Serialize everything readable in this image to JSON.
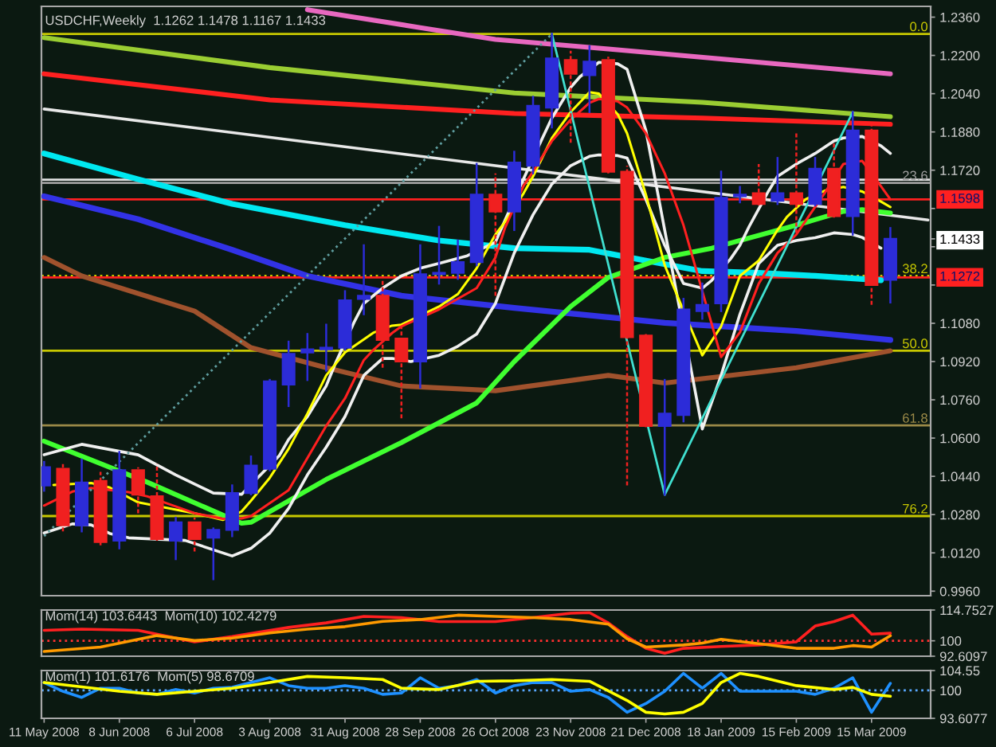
{
  "chart_data": [
    {
      "type": "candlestick",
      "title": "USDCHF,Weekly  1.1262 1.1478 1.1167 1.1433",
      "x": [
        "2008-05-11",
        "2008-05-18",
        "2008-05-25",
        "2008-06-01",
        "2008-06-08",
        "2008-06-15",
        "2008-06-22",
        "2008-06-29",
        "2008-07-06",
        "2008-07-13",
        "2008-07-20",
        "2008-07-27",
        "2008-08-03",
        "2008-08-10",
        "2008-08-17",
        "2008-08-24",
        "2008-08-31",
        "2008-09-07",
        "2008-09-14",
        "2008-09-21",
        "2008-09-28",
        "2008-10-05",
        "2008-10-12",
        "2008-10-19",
        "2008-10-26",
        "2008-11-02",
        "2008-11-09",
        "2008-11-16",
        "2008-11-23",
        "2008-11-30",
        "2008-12-07",
        "2008-12-14",
        "2008-12-21",
        "2008-12-28",
        "2009-01-04",
        "2009-01-11",
        "2009-01-18",
        "2009-01-25",
        "2009-02-01",
        "2009-02-08",
        "2009-02-15",
        "2009-02-22",
        "2009-03-01",
        "2009-03-08",
        "2009-03-15",
        "2009-03-22"
      ],
      "ohlc": [
        [
          1.0402,
          1.05,
          1.038,
          1.0478
        ],
        [
          1.0472,
          1.0491,
          1.021,
          1.0235
        ],
        [
          1.0235,
          1.051,
          1.021,
          1.0414
        ],
        [
          1.0421,
          1.0459,
          1.0152,
          1.0165
        ],
        [
          1.0171,
          1.0542,
          1.0139,
          1.0466
        ],
        [
          1.0466,
          1.0478,
          1.0286,
          1.0363
        ],
        [
          1.0357,
          1.0491,
          1.0171,
          1.0178
        ],
        [
          1.0171,
          1.0267,
          1.0094,
          1.0248
        ],
        [
          1.0248,
          1.0267,
          1.0126,
          1.0178
        ],
        [
          1.0184,
          1.0222,
          1.001,
          1.0216
        ],
        [
          1.0216,
          1.0402,
          1.019,
          1.037
        ],
        [
          1.037,
          1.0523,
          1.0365,
          1.0485
        ],
        [
          1.0472,
          1.0843,
          1.0465,
          1.0837
        ],
        [
          1.0824,
          1.1003,
          1.0734,
          1.0952
        ],
        [
          1.0958,
          1.1035,
          1.0843,
          1.0971
        ],
        [
          1.0971,
          1.1074,
          1.0882,
          1.0978
        ],
        [
          1.0978,
          1.1214,
          1.097,
          1.1176
        ],
        [
          1.1182,
          1.1406,
          1.1118,
          1.1195
        ],
        [
          1.1195,
          1.1266,
          1.0894,
          1.101
        ],
        [
          1.1016,
          1.1067,
          1.0683,
          1.092
        ],
        [
          1.092,
          1.1406,
          1.0811,
          1.1285
        ],
        [
          1.1285,
          1.1483,
          1.1246,
          1.1291
        ],
        [
          1.1291,
          1.1426,
          1.1266,
          1.1336
        ],
        [
          1.1336,
          1.1746,
          1.1323,
          1.1618
        ],
        [
          1.1618,
          1.1707,
          1.1195,
          1.1547
        ],
        [
          1.1547,
          1.1797,
          1.147,
          1.1752
        ],
        [
          1.1739,
          1.2027,
          1.1707,
          1.1989
        ],
        [
          1.1982,
          1.229,
          1.1899,
          1.2187
        ],
        [
          1.2181,
          1.2219,
          1.1835,
          1.2123
        ],
        [
          1.2117,
          1.2238,
          1.1963,
          1.2174
        ],
        [
          1.2181,
          1.2194,
          1.1707,
          1.1714
        ],
        [
          1.1714,
          1.1739,
          1.0402,
          1.1022
        ],
        [
          1.1029,
          1.104,
          1.0645,
          1.0651
        ],
        [
          1.0651,
          1.0843,
          1.0363,
          1.0702
        ],
        [
          1.0696,
          1.1182,
          1.067,
          1.1138
        ],
        [
          1.1131,
          1.1246,
          1.1099,
          1.1157
        ],
        [
          1.1163,
          1.1714,
          1.1131,
          1.1605
        ],
        [
          1.1611,
          1.165,
          1.1586,
          1.1618
        ],
        [
          1.1624,
          1.1746,
          1.1573,
          1.1579
        ],
        [
          1.1592,
          1.1771,
          1.1579,
          1.1624
        ],
        [
          1.1624,
          1.1874,
          1.1458,
          1.1579
        ],
        [
          1.1579,
          1.1771,
          1.1573,
          1.1726
        ],
        [
          1.1726,
          1.1835,
          1.1522,
          1.1528
        ],
        [
          1.1528,
          1.1963,
          1.1451,
          1.1886
        ],
        [
          1.1886,
          1.1906,
          1.1157,
          1.124
        ],
        [
          1.1262,
          1.1478,
          1.1167,
          1.1433
        ]
      ],
      "colors": [
        "#2c2cd8",
        "#f02020",
        "#2c2cd8",
        "#f02020",
        "#2c2cd8",
        "#f02020",
        "#f02020",
        "#2c2cd8",
        "#f02020",
        "#2c2cd8",
        "#2c2cd8",
        "#2c2cd8",
        "#2c2cd8",
        "#2c2cd8",
        "#2c2cd8",
        "#2c2cd8",
        "#2c2cd8",
        "#2c2cd8",
        "#f02020",
        "#f02020",
        "#2c2cd8",
        "#2c2cd8",
        "#2c2cd8",
        "#2c2cd8",
        "#f02020",
        "#2c2cd8",
        "#2c2cd8",
        "#2c2cd8",
        "#f02020",
        "#2c2cd8",
        "#f02020",
        "#f02020",
        "#f02020",
        "#2c2cd8",
        "#2c2cd8",
        "#2c2cd8",
        "#2c2cd8",
        "#2c2cd8",
        "#f02020",
        "#2c2cd8",
        "#f02020",
        "#2c2cd8",
        "#f02020",
        "#2c2cd8",
        "#f02020",
        "#2c2cd8"
      ],
      "series": [
        {
          "type": "line",
          "color": "#e868c0",
          "x": [
            "2008-08-17",
            "2008-09-28",
            "2008-10-26",
            "2008-12-07",
            "2009-01-18",
            "2009-03-22"
          ],
          "values": [
            1.2391,
            1.2316,
            1.2267,
            1.2227,
            1.2185,
            1.2123
          ]
        },
        {
          "type": "line",
          "color": "#9acd32",
          "x": [
            "2008-05-11",
            "2008-08-03",
            "2008-11-02",
            "2009-01-11",
            "2009-03-22"
          ],
          "values": [
            1.2274,
            1.2149,
            1.2043,
            1.2004,
            1.1944
          ]
        },
        {
          "type": "line",
          "color": "#ff2020",
          "x": [
            "2008-05-11",
            "2008-08-03",
            "2008-11-02",
            "2009-01-11",
            "2009-03-22"
          ],
          "values": [
            1.2123,
            1.2014,
            1.1957,
            1.1938,
            1.1912
          ]
        },
        {
          "type": "line",
          "color": "#e8e8e8",
          "x": [
            "2008-05-11",
            "2009-04-05"
          ],
          "values": [
            1.1976,
            1.1512
          ]
        },
        {
          "type": "line",
          "color": "#00e8f0",
          "x": [
            "2008-05-11",
            "2008-06-15",
            "2008-07-20",
            "2008-08-31",
            "2008-10-05",
            "2008-11-02",
            "2008-11-30",
            "2008-12-21",
            "2009-01-11",
            "2009-02-01",
            "2009-02-22",
            "2009-03-18T12:00"
          ],
          "values": [
            1.179,
            1.1682,
            1.1579,
            1.149,
            1.1426,
            1.1394,
            1.1387,
            1.1342,
            1.1298,
            1.1291,
            1.1278,
            1.126
          ]
        },
        {
          "type": "line",
          "color": "#3232e6",
          "x": [
            "2008-05-11",
            "2008-06-15",
            "2008-07-20",
            "2008-08-17",
            "2008-09-21",
            "2008-11-02",
            "2008-12-28",
            "2009-02-15",
            "2009-03-22"
          ],
          "values": [
            1.1611,
            1.1515,
            1.1387,
            1.1278,
            1.1195,
            1.1144,
            1.1082,
            1.1048,
            1.101
          ]
        },
        {
          "type": "line",
          "color": "#a0522d",
          "x": [
            "2008-05-11",
            "2008-05-25",
            "2008-07-06",
            "2008-07-27",
            "2008-08-24",
            "2008-09-21",
            "2008-10-26",
            "2008-12-07",
            "2008-12-28",
            "2009-02-15",
            "2009-03-22"
          ],
          "values": [
            1.1355,
            1.1278,
            1.1131,
            1.0978,
            1.0894,
            1.0818,
            1.0798,
            1.0862,
            1.083,
            1.0894,
            1.0965
          ]
        },
        {
          "type": "line",
          "color": "#40ff30",
          "x": [
            "2008-05-11",
            "2008-06-18T12:00",
            "2008-07-23T12:00",
            "2008-07-27",
            "2008-08-24",
            "2008-09-21",
            "2008-10-19",
            "2008-11-02",
            "2008-11-23",
            "2008-12-07",
            "2008-12-28",
            "2009-01-14T12:00",
            "2009-02-15",
            "2009-03-04T12:00",
            "2009-03-11T12:00",
            "2009-03-22"
          ],
          "values": [
            1.0587,
            1.0415,
            1.0244,
            1.0248,
            1.0427,
            1.0581,
            1.0747,
            1.092,
            1.115,
            1.1272,
            1.1355,
            1.1394,
            1.149,
            1.1548,
            1.1555,
            1.1541
          ]
        },
        {
          "type": "line",
          "color": "#f0f0f0",
          "x": [
            "2008-05-11",
            "2008-05-25",
            "2008-06-15",
            "2008-06-29",
            "2008-07-13",
            "2008-07-23T12:00",
            "2008-08-06T12:00",
            "2008-08-10",
            "2008-08-17",
            "2008-08-24",
            "2008-08-27T12:00",
            "2008-09-03T12:00",
            "2008-09-07",
            "2008-09-14",
            "2008-09-21",
            "2008-09-28",
            "2008-10-05",
            "2008-10-15T12:00",
            "2008-10-26",
            "2008-10-29T12:00",
            "2008-11-05T12:00",
            "2008-11-12T12:00",
            "2008-11-16",
            "2008-11-23",
            "2008-11-26T12:00",
            "2008-12-03T12:00",
            "2008-12-10T12:00",
            "2008-12-14",
            "2008-12-21",
            "2008-12-28",
            "2008-12-31T12:00",
            "2009-01-07T12:00",
            "2009-01-11",
            "2009-01-18",
            "2009-01-25",
            "2009-02-01",
            "2009-02-08",
            "2009-02-15",
            "2009-02-22",
            "2009-03-01",
            "2009-03-08",
            "2009-03-11T12:00",
            "2009-03-18T12:00"
          ],
          "values": [
            1.053,
            1.0574,
            1.053,
            1.0446,
            1.037,
            1.0365,
            1.0526,
            1.0594,
            1.069,
            1.0818,
            1.0914,
            1.1087,
            1.1163,
            1.1227,
            1.1278,
            1.131,
            1.133,
            1.1362,
            1.1419,
            1.1509,
            1.1685,
            1.1855,
            1.1938,
            1.2066,
            1.2111,
            1.2171,
            1.2165,
            1.2142,
            1.1886,
            1.147,
            1.1262,
            1.0846,
            1.0638,
            1.0862,
            1.1118,
            1.133,
            1.1406,
            1.1426,
            1.1438,
            1.1458,
            1.1451,
            1.1439,
            1.1394
          ]
        },
        {
          "type": "line",
          "color": "#f0f0f0",
          "x": [
            "2008-05-11",
            "2008-05-21T12:00",
            "2008-05-28T12:00",
            "2008-06-04T12:00",
            "2008-06-11T12:00",
            "2008-07-02T12:00",
            "2008-07-20",
            "2008-07-27",
            "2008-08-03",
            "2008-08-10",
            "2008-08-17",
            "2008-08-24",
            "2008-08-31",
            "2008-09-07",
            "2008-09-14",
            "2008-09-17T12:00",
            "2008-09-24T12:00",
            "2008-10-05",
            "2008-10-12",
            "2008-10-19",
            "2008-10-26",
            "2008-11-02",
            "2008-11-09",
            "2008-11-16",
            "2008-11-23",
            "2008-11-30",
            "2008-12-03T12:00",
            "2008-12-10T12:00",
            "2008-12-14",
            "2008-12-21",
            "2008-12-28",
            "2009-01-04",
            "2009-01-11",
            "2009-01-14T12:00",
            "2009-01-21T12:00",
            "2009-01-25",
            "2009-01-28T12:00",
            "2009-02-04T12:00",
            "2009-02-08",
            "2009-02-15",
            "2009-02-22",
            "2009-03-01",
            "2009-03-04T12:00",
            "2009-03-11T12:00",
            "2009-03-18T12:00",
            "2009-03-22"
          ],
          "values": [
            1.0203,
            1.0241,
            1.0237,
            1.0201,
            1.0183,
            1.0172,
            1.0107,
            1.0139,
            1.0203,
            1.0306,
            1.0446,
            1.0562,
            1.069,
            1.0862,
            1.0933,
            1.0933,
            1.092,
            1.0946,
            1.0984,
            1.1035,
            1.1163,
            1.1374,
            1.1534,
            1.1662,
            1.1739,
            1.1778,
            1.1784,
            1.1781,
            1.1771,
            1.1598,
            1.1406,
            1.1246,
            1.1227,
            1.1259,
            1.1349,
            1.1406,
            1.1486,
            1.163,
            1.1694,
            1.1746,
            1.179,
            1.1842,
            1.1855,
            1.1861,
            1.1822,
            1.179
          ]
        },
        {
          "type": "line",
          "color": "#ffff00",
          "x": [
            "2008-05-14T12:00",
            "2008-05-28T12:00",
            "2008-06-04T12:00",
            "2008-06-15",
            "2008-07-06",
            "2008-07-16T12:00",
            "2008-07-23T12:00",
            "2008-07-27",
            "2008-08-03",
            "2008-08-10",
            "2008-08-17",
            "2008-08-24",
            "2008-08-31",
            "2008-09-10T12:00",
            "2008-09-17T12:00",
            "2008-09-21",
            "2008-10-05",
            "2008-10-12",
            "2008-10-19",
            "2008-10-26",
            "2008-10-29T12:00",
            "2008-11-05T12:00",
            "2008-11-09",
            "2008-11-16",
            "2008-11-23",
            "2008-11-30",
            "2008-12-03T12:00",
            "2008-12-10T12:00",
            "2008-12-14",
            "2008-12-21",
            "2008-12-28",
            "2008-12-31T12:00",
            "2009-01-07T12:00",
            "2009-01-11",
            "2009-01-18",
            "2009-01-25",
            "2009-02-01",
            "2009-02-08",
            "2009-02-11T12:00",
            "2009-02-18T12:00",
            "2009-02-25T12:00",
            "2009-03-04T12:00",
            "2009-03-11T12:00",
            "2009-03-18T12:00",
            "2009-03-22"
          ],
          "values": [
            1.0404,
            1.0412,
            1.0393,
            1.0331,
            1.0286,
            1.0258,
            1.0293,
            1.0338,
            1.0434,
            1.0555,
            1.0702,
            1.0862,
            1.0958,
            1.104,
            1.107,
            1.1074,
            1.115,
            1.1202,
            1.131,
            1.1451,
            1.1503,
            1.1624,
            1.1694,
            1.1854,
            1.1963,
            1.2046,
            1.204,
            1.1954,
            1.1874,
            1.1618,
            1.1323,
            1.1227,
            1.1039,
            1.0946,
            1.1067,
            1.1278,
            1.1342,
            1.147,
            1.1525,
            1.1599,
            1.1634,
            1.165,
            1.1631,
            1.1589,
            1.1566
          ]
        },
        {
          "type": "line",
          "color": "#ff2020",
          "x": [
            "2008-05-11",
            "2008-05-21T12:00",
            "2008-05-28T12:00",
            "2008-06-11T12:00",
            "2008-06-18T12:00",
            "2008-07-06",
            "2008-07-16T12:00",
            "2008-07-23T12:00",
            "2008-07-27",
            "2008-08-10",
            "2008-08-24",
            "2008-08-31",
            "2008-09-07",
            "2008-09-10T12:00",
            "2008-09-17T12:00",
            "2008-09-21",
            "2008-10-05",
            "2008-10-19",
            "2008-10-26",
            "2008-10-29T12:00",
            "2008-11-05T12:00",
            "2008-11-09",
            "2008-11-16",
            "2008-11-23",
            "2008-11-30",
            "2008-12-03T12:00",
            "2008-12-10T12:00",
            "2008-12-14",
            "2008-12-21",
            "2008-12-28",
            "2009-01-04",
            "2009-01-11",
            "2009-01-18",
            "2009-01-25",
            "2009-02-01",
            "2009-02-08",
            "2009-02-15",
            "2009-02-18T12:00",
            "2009-02-25T12:00",
            "2009-03-04T12:00",
            "2009-03-11T12:00",
            "2009-03-18T12:00",
            "2009-03-22"
          ],
          "values": [
            1.0318,
            1.0376,
            1.0391,
            1.0374,
            1.0356,
            1.0286,
            1.0262,
            1.0264,
            1.0274,
            1.0382,
            1.0651,
            1.0766,
            1.0926,
            1.0968,
            1.1039,
            1.1067,
            1.1138,
            1.1227,
            1.1355,
            1.1477,
            1.1656,
            1.1714,
            1.1842,
            1.1931,
            1.2002,
            1.2018,
            1.2008,
            1.1982,
            1.1874,
            1.1707,
            1.149,
            1.1214,
            1.0939,
            1.1042,
            1.1246,
            1.1374,
            1.1451,
            1.1509,
            1.1624,
            1.1746,
            1.1759,
            1.1653,
            1.1598
          ]
        },
        {
          "type": "line",
          "color": "#40e0d0",
          "x": [
            "2008-11-16",
            "2008-12-28",
            "2009-03-08"
          ],
          "values": [
            1.229,
            1.0363,
            1.1963
          ]
        },
        {
          "type": "line",
          "color": "#5f9ea0",
          "line_style": "dotted",
          "x": [
            "2008-05-11",
            "2008-11-16"
          ],
          "values": [
            1.019,
            1.229
          ]
        }
      ],
      "xlim": [
        "2008-05-10",
        "2009-04-06"
      ],
      "ylim": [
        0.9941,
        1.2405
      ],
      "yticks": [
        {
          "value": 1.236,
          "label": "1.2360"
        },
        {
          "value": 1.22,
          "label": "1.2200"
        },
        {
          "value": 1.204,
          "label": "1.2040"
        },
        {
          "value": 1.188,
          "label": "1.1880"
        },
        {
          "value": 1.172,
          "label": "1.1720"
        },
        {
          "value": 1.156,
          "label": null
        },
        {
          "value": 1.1433,
          "label": "1.1433"
        },
        {
          "value": 1.14,
          "label": null
        },
        {
          "value": 1.124,
          "label": null
        },
        {
          "value": 1.108,
          "label": "1.1080"
        },
        {
          "value": 1.092,
          "label": "1.0920"
        },
        {
          "value": 1.076,
          "label": "1.0760"
        },
        {
          "value": 1.06,
          "label": "1.0600"
        },
        {
          "value": 1.044,
          "label": "1.0440"
        },
        {
          "value": 1.028,
          "label": "1.0280"
        },
        {
          "value": 1.012,
          "label": "1.0120"
        },
        {
          "value": 0.996,
          "label": "0.9960"
        }
      ],
      "ref_lines": [
        {
          "axis": "y",
          "value": 1.229,
          "color": "#c8c800"
        },
        {
          "axis": "y",
          "value": 1.168,
          "color": "#e0e0e0"
        },
        {
          "axis": "y",
          "value": 1.1667,
          "color": "#a0a0a0"
        },
        {
          "axis": "y",
          "value": 1.1598,
          "label": "1.1598",
          "color": "#ff2020"
        },
        {
          "axis": "y",
          "value": 1.1278,
          "color": "#c8c800",
          "line_style": "dotted"
        },
        {
          "axis": "y",
          "value": 1.1272,
          "label": "1.1272",
          "color": "#ff2020"
        },
        {
          "axis": "y",
          "value": 1.0965,
          "color": "#c8c800"
        },
        {
          "axis": "y",
          "value": 1.0653,
          "color": "#9c8a48"
        },
        {
          "axis": "y",
          "value": 1.0274,
          "color": "#c8c800"
        }
      ],
      "annotations": [
        {
          "text": "0.0",
          "y": 1.229
        },
        {
          "text": "23.6",
          "y": 1.1667
        },
        {
          "text": "38.2",
          "y": 1.1278
        },
        {
          "text": "50.0",
          "y": 1.0965
        },
        {
          "text": "61.8",
          "y": 1.0653
        },
        {
          "text": "76.2",
          "y": 1.0274
        }
      ],
      "tick_labels": "y"
    },
    {
      "type": "line",
      "title": "Mom(14) 103.6443  Mom(10) 102.4279",
      "series": [
        {
          "color": "#ff2020",
          "x": [
            "2008-05-11",
            "2008-05-25",
            "2008-06-15",
            "2008-07-06",
            "2008-07-20",
            "2008-08-10",
            "2008-08-24",
            "2008-09-07",
            "2008-09-21",
            "2008-10-05",
            "2008-10-26",
            "2008-11-09",
            "2008-11-23",
            "2008-11-30",
            "2008-12-07",
            "2008-12-14",
            "2008-12-21",
            "2008-12-28",
            "2009-01-04",
            "2009-01-18",
            "2009-02-01",
            "2009-02-15",
            "2009-02-22",
            "2009-03-01",
            "2009-03-08",
            "2009-03-15",
            "2009-03-22"
          ],
          "values": [
            105.0,
            105.6,
            105.0,
            99.5,
            102.0,
            106.4,
            108.6,
            111.7,
            111.1,
            109.2,
            109.2,
            111.1,
            113.2,
            113.5,
            108.6,
            102.0,
            96.4,
            94.0,
            96.4,
            97.3,
            98.0,
            99.5,
            107.1,
            109.2,
            112.3,
            103.2,
            103.6443
          ]
        },
        {
          "color": "#ff9a00",
          "x": [
            "2008-05-11",
            "2008-06-01",
            "2008-06-22",
            "2008-07-06",
            "2008-07-20",
            "2008-08-03",
            "2008-08-17",
            "2008-08-31",
            "2008-09-14",
            "2008-09-28",
            "2008-10-12",
            "2008-10-26",
            "2008-11-09",
            "2008-11-23",
            "2008-12-07",
            "2008-12-14",
            "2008-12-21",
            "2009-01-04",
            "2009-01-11",
            "2009-01-18",
            "2009-02-01",
            "2009-02-15",
            "2009-03-01",
            "2009-03-08",
            "2009-03-15",
            "2009-03-22"
          ],
          "values": [
            94.9,
            97.0,
            102.5,
            100.1,
            101.3,
            103.8,
            105.6,
            106.8,
            109.3,
            110.2,
            112.3,
            111.7,
            111.1,
            110.2,
            108.0,
            101.0,
            97.0,
            98.0,
            98.9,
            100.7,
            98.6,
            96.4,
            96.4,
            97.7,
            97.0,
            102.4279
          ]
        }
      ],
      "xlim": [
        "2008-05-10",
        "2009-04-06"
      ],
      "ylim": [
        92.6097,
        114.7527
      ],
      "yticks": [
        114.7527,
        100,
        92.6097
      ],
      "ref_lines": [
        {
          "axis": "y",
          "value": 100,
          "color": "#ff3030",
          "line_style": "dotted"
        }
      ],
      "tick_labels": "y"
    },
    {
      "type": "line",
      "title": "Mom(1) 101.6176  Mom(5) 98.6709",
      "x": [
        "2008-05-11",
        "2008-05-18",
        "2008-05-25",
        "2008-06-01",
        "2008-06-08",
        "2008-06-15",
        "2008-06-22",
        "2008-06-29",
        "2008-07-06",
        "2008-07-13",
        "2008-07-20",
        "2008-07-27",
        "2008-08-03",
        "2008-08-10",
        "2008-08-17",
        "2008-08-24",
        "2008-08-31",
        "2008-09-07",
        "2008-09-14",
        "2008-09-21",
        "2008-09-28",
        "2008-10-05",
        "2008-10-12",
        "2008-10-19",
        "2008-10-26",
        "2008-11-02",
        "2008-11-09",
        "2008-11-16",
        "2008-11-23",
        "2008-11-30",
        "2008-12-07",
        "2008-12-14",
        "2008-12-21",
        "2008-12-28",
        "2009-01-04",
        "2009-01-11",
        "2009-01-18",
        "2009-01-25",
        "2009-02-01",
        "2009-02-08",
        "2009-02-15",
        "2009-02-22",
        "2009-03-01",
        "2009-03-08",
        "2009-03-15",
        "2009-03-22"
      ],
      "series": [
        {
          "color": "#1e90ff",
          "values": [
            101.8,
            99.8,
            98.4,
            100.5,
            100.5,
            99.4,
            99.1,
            100.2,
            99.4,
            100.5,
            100.7,
            101.8,
            102.9,
            101.1,
            100.5,
            100.5,
            101.1,
            100.5,
            99.1,
            99.4,
            102.9,
            100.5,
            101.1,
            102.5,
            99.4,
            101.1,
            101.8,
            101.8,
            99.8,
            100.2,
            98.4,
            95.0,
            97.0,
            99.8,
            103.9,
            100.5,
            103.9,
            99.8,
            99.8,
            99.8,
            99.8,
            99.1,
            100.5,
            102.9,
            95.0,
            101.6176
          ]
        },
        {
          "color": "#ffff00",
          "x": [
            "2008-05-11",
            "2008-05-25",
            "2008-06-08",
            "2008-06-22",
            "2008-07-06",
            "2008-07-20",
            "2008-08-03",
            "2008-08-17",
            "2008-08-31",
            "2008-09-14",
            "2008-09-21",
            "2008-10-05",
            "2008-10-19",
            "2008-11-02",
            "2008-11-16",
            "2008-11-30",
            "2008-12-14",
            "2008-12-21",
            "2008-12-28",
            "2009-01-04",
            "2009-01-11",
            "2009-01-18",
            "2009-01-25",
            "2009-02-01",
            "2009-02-15",
            "2009-03-01",
            "2009-03-08",
            "2009-03-15",
            "2009-03-22"
          ],
          "values": [
            101.8,
            100.8,
            99.8,
            99.1,
            99.8,
            100.5,
            101.8,
            103.2,
            102.9,
            102.5,
            100.5,
            100.2,
            102.1,
            102.2,
            102.5,
            102.1,
            97.7,
            95.0,
            94.6,
            95.0,
            97.0,
            101.8,
            103.9,
            103.2,
            101.1,
            100.2,
            100.7,
            99.1,
            98.6709
          ]
        }
      ],
      "xlim": [
        "2008-05-10",
        "2009-04-06"
      ],
      "ylim": [
        93.6077,
        104.55
      ],
      "yticks": [
        104.55,
        100,
        93.6077
      ],
      "xticks": [
        {
          "value": "2008-05-11",
          "label": "11 May 2008"
        },
        {
          "value": "2008-06-08",
          "label": "8 Jun 2008"
        },
        {
          "value": "2008-07-06",
          "label": "6 Jul 2008"
        },
        {
          "value": "2008-08-03",
          "label": "3 Aug 2008"
        },
        {
          "value": "2008-08-31",
          "label": "31 Aug 2008"
        },
        {
          "value": "2008-09-28",
          "label": "28 Sep 2008"
        },
        {
          "value": "2008-10-26",
          "label": "26 Oct 2008"
        },
        {
          "value": "2008-11-23",
          "label": "23 Nov 2008"
        },
        {
          "value": "2008-12-21",
          "label": "21 Dec 2008"
        },
        {
          "value": "2009-01-18",
          "label": "18 Jan 2009"
        },
        {
          "value": "2009-02-15",
          "label": "15 Feb 2009"
        },
        {
          "value": "2009-03-15",
          "label": "15 Mar 2009"
        }
      ],
      "ref_lines": [
        {
          "axis": "y",
          "value": 100,
          "color": "#5aa8ff",
          "line_style": "dotted"
        }
      ]
    }
  ]
}
